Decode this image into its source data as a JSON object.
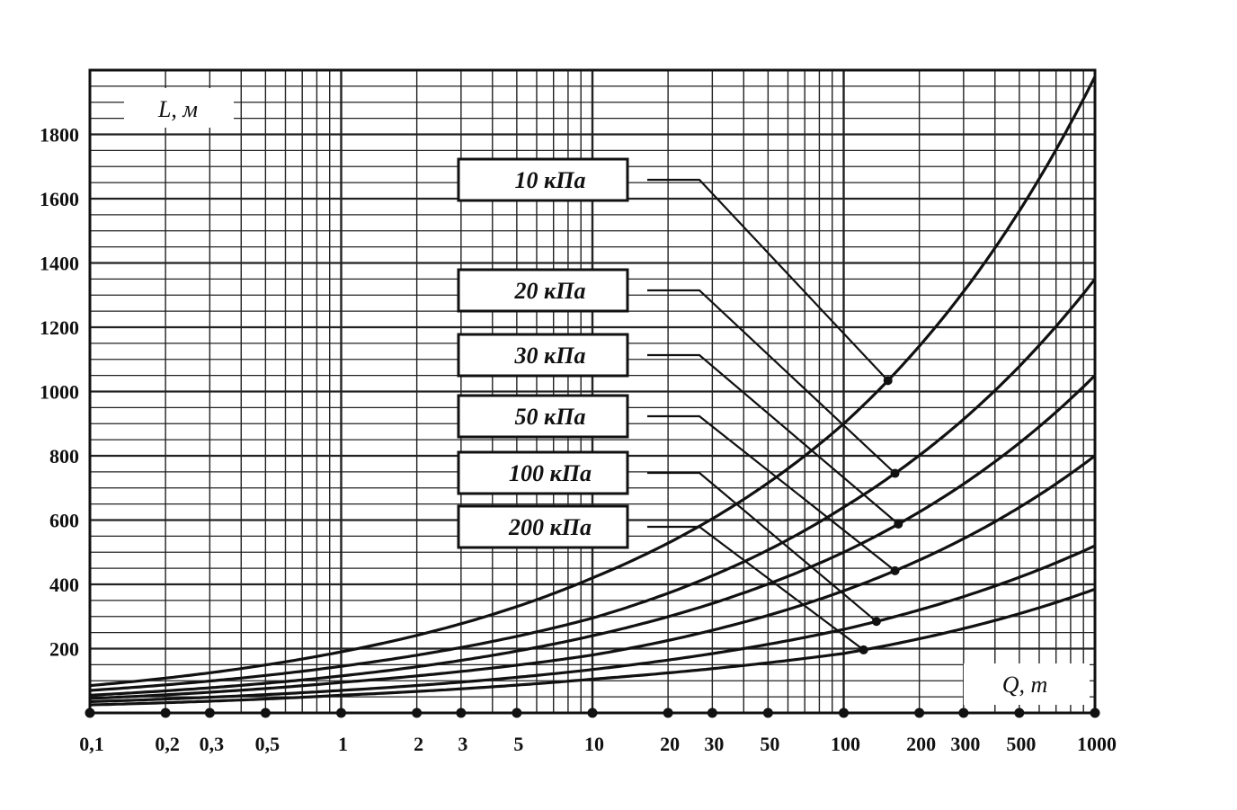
{
  "chart_data": {
    "type": "line",
    "title": "",
    "xlabel": "Q, т",
    "ylabel": "L, м",
    "x_scale": "log",
    "xlim": [
      0.1,
      1000
    ],
    "ylim": [
      0,
      2000
    ],
    "grid": true,
    "legend_placement": "inline labels with leader lines",
    "x_ticks": [
      0.1,
      0.2,
      0.3,
      0.5,
      1,
      2,
      3,
      5,
      10,
      20,
      30,
      50,
      100,
      200,
      300,
      500,
      1000
    ],
    "x_tick_labels": [
      "0,1",
      "0,2",
      "0,3",
      "0,5",
      "1",
      "2",
      "3",
      "5",
      "10",
      "20",
      "30",
      "50",
      "100",
      "200",
      "300",
      "500",
      "1000"
    ],
    "y_ticks": [
      200,
      400,
      600,
      800,
      1000,
      1200,
      1400,
      1600,
      1800
    ],
    "y_tick_labels": [
      "200",
      "400",
      "600",
      "800",
      "1000",
      "1200",
      "1400",
      "1600",
      "1800"
    ],
    "x": [
      0.1,
      1,
      10,
      100,
      1000
    ],
    "series": [
      {
        "name": "10 кПа",
        "values": [
          85,
          190,
          420,
          900,
          1980
        ],
        "marker_x": 150
      },
      {
        "name": "20 кПа",
        "values": [
          70,
          145,
          295,
          640,
          1350
        ],
        "marker_x": 160
      },
      {
        "name": "30 кПа",
        "values": [
          55,
          115,
          240,
          500,
          1050
        ],
        "marker_x": 165
      },
      {
        "name": "50 кПа",
        "values": [
          45,
          95,
          180,
          380,
          800
        ],
        "marker_x": 160
      },
      {
        "name": "100 кПа",
        "values": [
          35,
          70,
          135,
          260,
          520
        ],
        "marker_x": 135
      },
      {
        "name": "200 кПа",
        "values": [
          25,
          55,
          105,
          185,
          385
        ],
        "marker_x": 120
      }
    ],
    "colors": {
      "line": "#111111",
      "grid": "#222222",
      "background": "#ffffff"
    }
  }
}
